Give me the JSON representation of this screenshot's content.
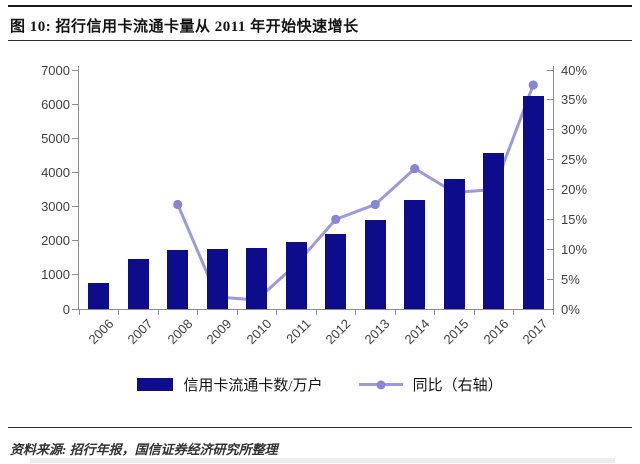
{
  "figure": {
    "title": "图 10:  招行信用卡流通卡量从 2011 年开始快速增长",
    "source_note": "资料来源:  招行年报，国信证券经济研究所整理"
  },
  "legend": {
    "bar_label": "信用卡流通卡数/万户",
    "line_label": "同比（右轴）"
  },
  "colors": {
    "bar": "#0d0d8c",
    "line": "#9a9adc",
    "marker": "#8686d2",
    "axis": "#8c8c8c",
    "tick_text": "#3f3f3f"
  },
  "chart_data": {
    "type": "bar",
    "subtype": "combo-bar-line-dual-axis",
    "title": "招行信用卡流通卡量从 2011 年开始快速增长",
    "categories": [
      "2006",
      "2007",
      "2008",
      "2009",
      "2010",
      "2011",
      "2012",
      "2013",
      "2014",
      "2015",
      "2016",
      "2017"
    ],
    "series": [
      {
        "name": "信用卡流通卡数/万户",
        "type": "bar",
        "axis": "left",
        "values": [
          750,
          1450,
          1730,
          1750,
          1800,
          1950,
          2200,
          2600,
          3200,
          3800,
          4560,
          6250
        ]
      },
      {
        "name": "同比（右轴）",
        "type": "line",
        "axis": "right",
        "unit": "%",
        "values": [
          null,
          null,
          17.5,
          2,
          1.5,
          7.5,
          15,
          17.5,
          23.5,
          19.5,
          20,
          37.5
        ]
      }
    ],
    "left_axis": {
      "min": 0,
      "max": 7000,
      "step": 1000,
      "tick_labels": [
        "7000",
        "6000",
        "5000",
        "4000",
        "3000",
        "2000",
        "1000",
        "0"
      ]
    },
    "right_axis": {
      "min": 0,
      "max": 40,
      "step": 5,
      "suffix": "%",
      "tick_labels": [
        "40%",
        "35%",
        "30%",
        "25%",
        "20%",
        "15%",
        "10%",
        "5%",
        "0%"
      ]
    },
    "grid": false,
    "legend_position": "bottom"
  }
}
